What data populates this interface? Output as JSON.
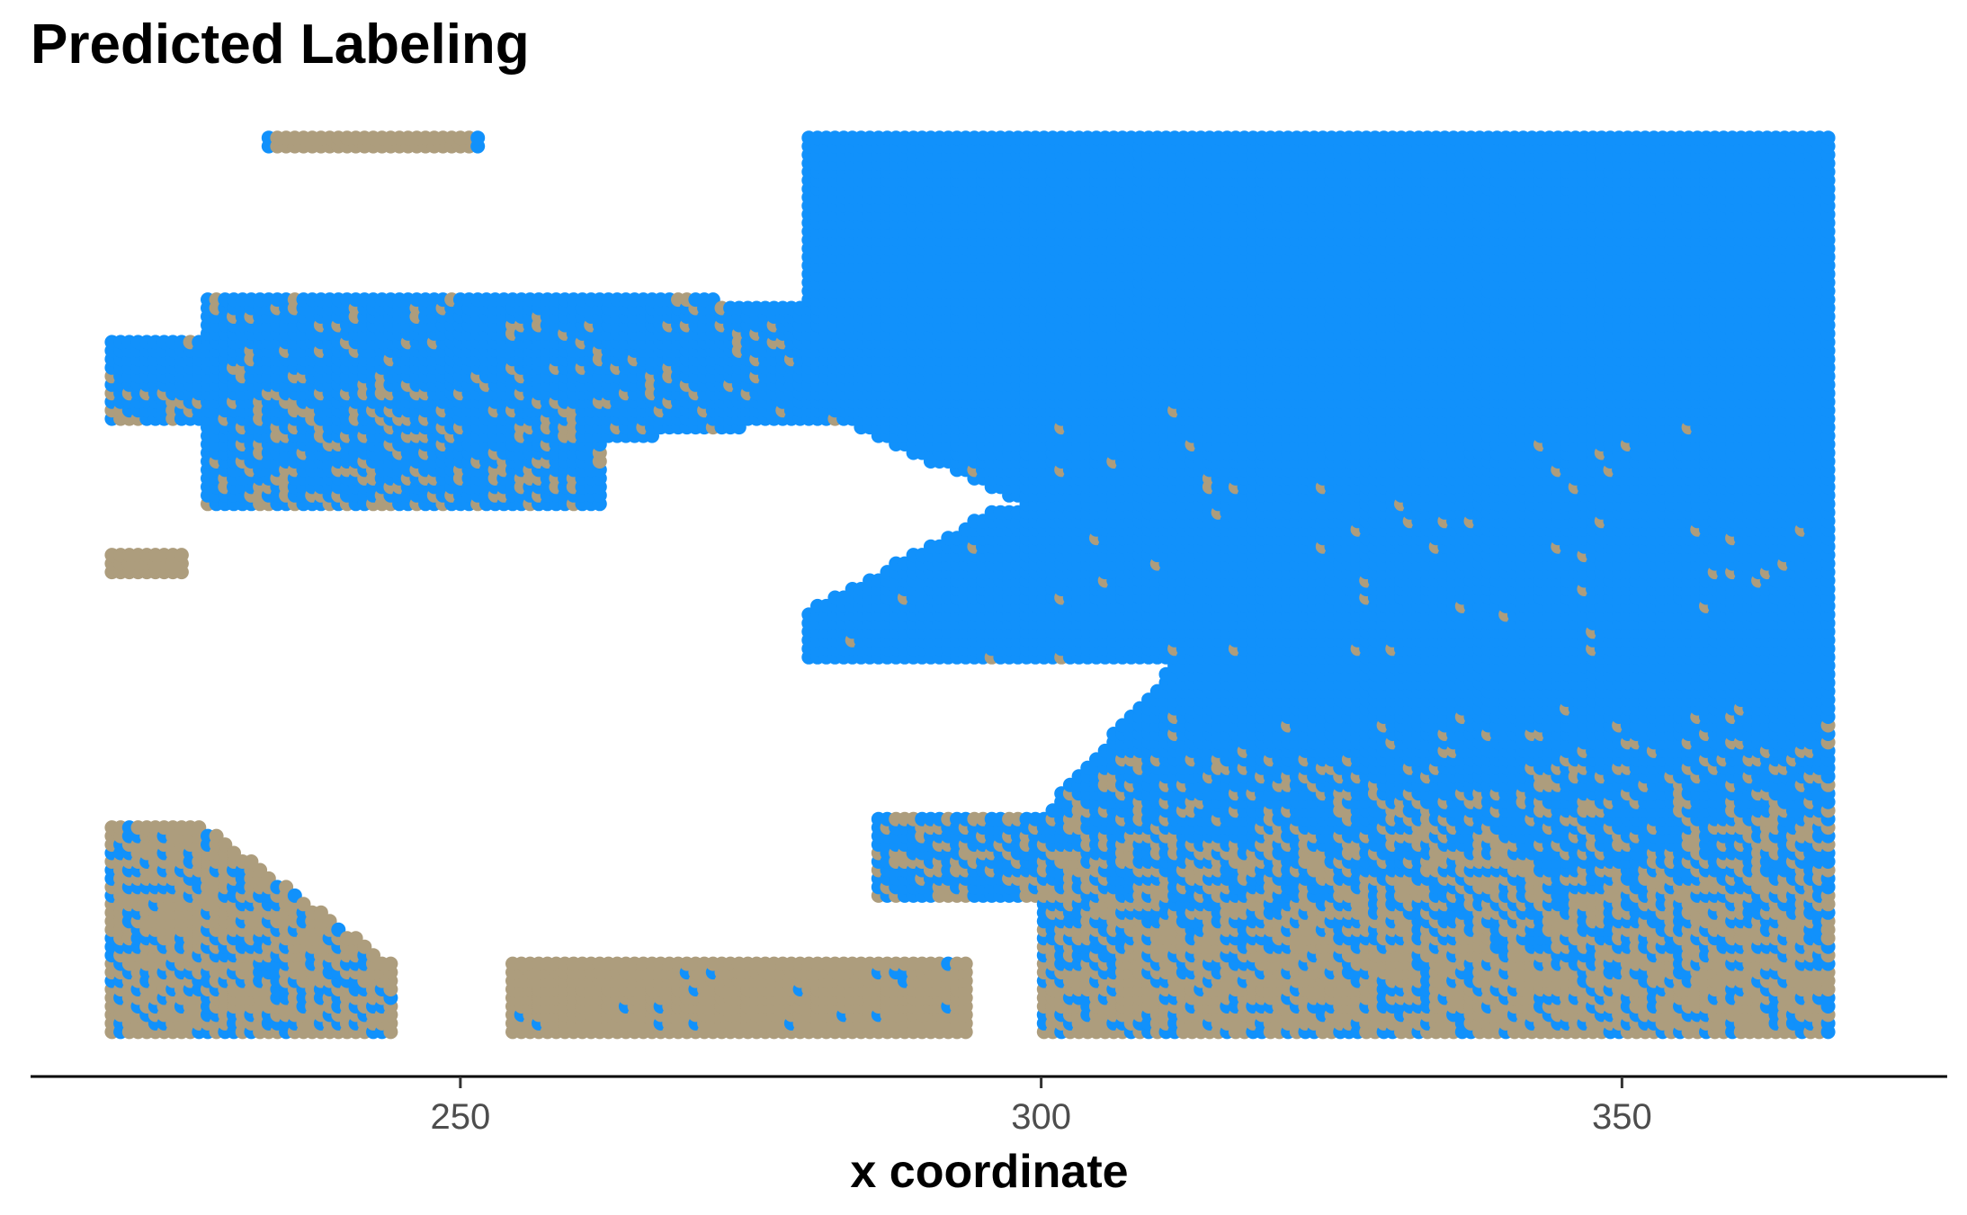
{
  "chart_data": {
    "type": "scatter",
    "title": "Predicted Labeling",
    "xlabel": "x coordinate",
    "ylabel": "",
    "xlim": [
      213,
      378
    ],
    "ylim": [
      0,
      80
    ],
    "xticks": [
      250,
      300,
      350
    ],
    "xtick_labels": [
      "250",
      "300",
      "350"
    ],
    "grid": false,
    "legend": "none",
    "colors": {
      "blue": "#1191fb",
      "tan": "#ad9d7d"
    },
    "series": [
      {
        "color": "#1191fb",
        "regions": [
          {
            "x": [
              280,
              368
            ],
            "y": [
              56,
              80
            ]
          },
          {
            "x": [
              280,
              368
            ],
            "y": [
              38,
              56
            ]
          },
          {
            "x": [
              300,
              368
            ],
            "y": [
              28,
              38
            ]
          },
          {
            "x": [
              286,
              300
            ],
            "y": [
              17,
              20
            ]
          },
          {
            "x": [
              220,
              280
            ],
            "y": [
              48,
              66
            ]
          },
          {
            "x": [
              220,
              244
            ],
            "y": [
              1,
              15
            ]
          }
        ]
      },
      {
        "color": "#ad9d7d",
        "regions": [
          {
            "x": [
              233,
              252
            ],
            "y": [
              79,
              80
            ]
          },
          {
            "x": [
              220,
              226
            ],
            "y": [
              41,
              43
            ]
          },
          {
            "x": [
              220,
              234
            ],
            "y": [
              1,
              19
            ]
          },
          {
            "x": [
              254,
              294
            ],
            "y": [
              1,
              7
            ]
          },
          {
            "x": [
              300,
              368
            ],
            "y": [
              1,
              12
            ]
          },
          {
            "x": [
              286,
              300
            ],
            "y": [
              13,
              17
            ]
          }
        ]
      }
    ]
  }
}
